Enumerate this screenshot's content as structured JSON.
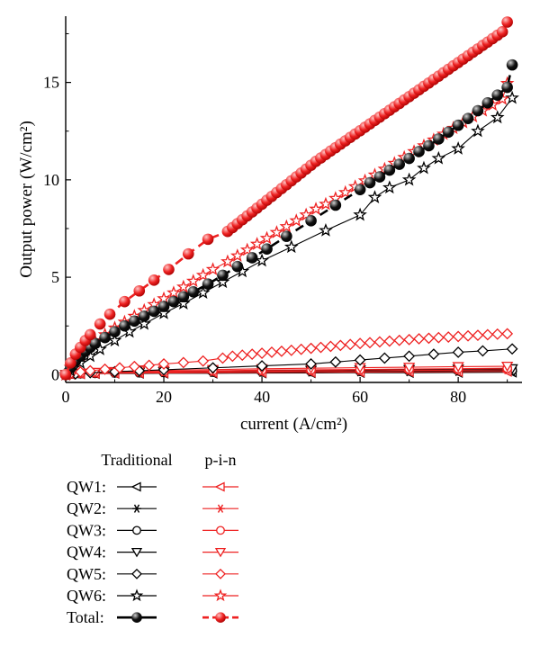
{
  "chart_data": {
    "type": "line",
    "xlabel": "current (A/cm²)",
    "ylabel": "Output power (W/cm²)",
    "xlim": [
      0,
      93
    ],
    "ylim": [
      -0.4,
      18.4
    ],
    "x_ticks": [
      0,
      20,
      40,
      60,
      80
    ],
    "y_ticks": [
      0,
      5,
      10,
      15
    ],
    "grid": false,
    "legend_position": "below",
    "legend_headers": [
      "Traditional",
      "p-i-n"
    ],
    "legend_rows": [
      "QW1:",
      "QW2:",
      "QW3:",
      "QW4:",
      "QW5:",
      "QW6:",
      "Total:"
    ],
    "colors": {
      "traditional": "#000000",
      "pin": "#ee2222"
    },
    "series": [
      {
        "legend_row": 0,
        "group": "traditional",
        "marker": "triangle-left",
        "x": [
          0,
          1,
          3,
          6,
          10,
          15,
          20,
          30,
          40,
          50,
          60,
          70,
          80,
          91
        ],
        "y": [
          0,
          0.02,
          0.04,
          0.05,
          0.06,
          0.06,
          0.07,
          0.07,
          0.08,
          0.09,
          0.1,
          0.1,
          0.11,
          0.12
        ]
      },
      {
        "legend_row": 1,
        "group": "traditional",
        "marker": "asterisk",
        "x": [
          0,
          1,
          3,
          6,
          10,
          15,
          20,
          30,
          40,
          50,
          60,
          70,
          80,
          91
        ],
        "y": [
          0,
          0.02,
          0.04,
          0.06,
          0.08,
          0.09,
          0.1,
          0.11,
          0.12,
          0.13,
          0.14,
          0.15,
          0.16,
          0.17
        ]
      },
      {
        "legend_row": 2,
        "group": "traditional",
        "marker": "circle",
        "x": [
          0,
          1,
          3,
          6,
          10,
          15,
          20,
          30,
          40,
          50,
          60,
          70,
          80,
          91
        ],
        "y": [
          0,
          0.03,
          0.05,
          0.07,
          0.09,
          0.1,
          0.11,
          0.13,
          0.14,
          0.16,
          0.17,
          0.19,
          0.2,
          0.22
        ]
      },
      {
        "legend_row": 3,
        "group": "traditional",
        "marker": "triangle-down",
        "x": [
          0,
          1,
          3,
          6,
          10,
          15,
          20,
          30,
          40,
          50,
          60,
          70,
          80,
          91
        ],
        "y": [
          0,
          0.03,
          0.06,
          0.09,
          0.11,
          0.13,
          0.15,
          0.18,
          0.2,
          0.22,
          0.24,
          0.26,
          0.28,
          0.3
        ]
      },
      {
        "legend_row": 4,
        "group": "traditional",
        "marker": "diamond",
        "x": [
          0,
          2,
          5,
          10,
          15,
          20,
          30,
          40,
          50,
          55,
          60,
          65,
          70,
          75,
          80,
          85,
          91
        ],
        "y": [
          0,
          0.04,
          0.1,
          0.15,
          0.2,
          0.25,
          0.35,
          0.45,
          0.55,
          0.65,
          0.75,
          0.85,
          0.95,
          1.05,
          1.15,
          1.22,
          1.32
        ]
      },
      {
        "legend_row": 5,
        "group": "traditional",
        "marker": "star",
        "x": [
          0,
          1,
          3,
          5,
          7,
          10,
          13,
          16,
          20,
          24,
          28,
          32,
          36,
          40,
          46,
          53,
          60,
          63,
          66,
          70,
          73,
          76,
          80,
          84,
          88,
          91
        ],
        "y": [
          0,
          0.2,
          0.6,
          0.95,
          1.3,
          1.75,
          2.2,
          2.6,
          3.15,
          3.65,
          4.2,
          4.75,
          5.3,
          5.85,
          6.55,
          7.4,
          8.2,
          9.1,
          9.6,
          10.0,
          10.6,
          11.1,
          11.6,
          12.5,
          13.2,
          14.2
        ]
      },
      {
        "legend_row": 6,
        "group": "traditional",
        "marker": "ball",
        "x": [
          0,
          1,
          2,
          3,
          4,
          5,
          6,
          8,
          10,
          12,
          14,
          16,
          18,
          20,
          22,
          24,
          26,
          29,
          32,
          35,
          38,
          41,
          45,
          50,
          55,
          60,
          62,
          64,
          66,
          68,
          70,
          72,
          74,
          76,
          78,
          80,
          82,
          84,
          86,
          88,
          90,
          91
        ],
        "y": [
          0,
          0.35,
          0.7,
          0.95,
          1.2,
          1.4,
          1.6,
          1.9,
          2.2,
          2.5,
          2.75,
          3.0,
          3.25,
          3.5,
          3.75,
          4.0,
          4.25,
          4.65,
          5.1,
          5.55,
          6.0,
          6.45,
          7.1,
          7.9,
          8.7,
          9.5,
          9.85,
          10.15,
          10.5,
          10.8,
          11.1,
          11.45,
          11.75,
          12.1,
          12.45,
          12.8,
          13.15,
          13.55,
          13.95,
          14.35,
          14.75,
          15.9
        ]
      },
      {
        "legend_row": 0,
        "group": "pin",
        "marker": "triangle-left",
        "x": [
          0,
          1,
          3,
          6,
          10,
          15,
          20,
          30,
          40,
          50,
          60,
          70,
          80,
          90
        ],
        "y": [
          0,
          0.02,
          0.04,
          0.06,
          0.07,
          0.08,
          0.09,
          0.1,
          0.11,
          0.12,
          0.13,
          0.14,
          0.15,
          0.16
        ]
      },
      {
        "legend_row": 1,
        "group": "pin",
        "marker": "asterisk",
        "x": [
          0,
          1,
          3,
          6,
          10,
          15,
          20,
          30,
          40,
          50,
          60,
          70,
          80,
          90
        ],
        "y": [
          0,
          0.03,
          0.05,
          0.08,
          0.1,
          0.12,
          0.13,
          0.15,
          0.17,
          0.19,
          0.2,
          0.22,
          0.23,
          0.25
        ]
      },
      {
        "legend_row": 2,
        "group": "pin",
        "marker": "circle",
        "x": [
          0,
          1,
          3,
          6,
          10,
          15,
          20,
          30,
          40,
          50,
          60,
          70,
          80,
          90
        ],
        "y": [
          0,
          0.04,
          0.07,
          0.1,
          0.13,
          0.15,
          0.17,
          0.2,
          0.23,
          0.25,
          0.27,
          0.29,
          0.31,
          0.33
        ]
      },
      {
        "legend_row": 3,
        "group": "pin",
        "marker": "triangle-down",
        "x": [
          0,
          1,
          3,
          6,
          10,
          15,
          20,
          30,
          40,
          50,
          60,
          70,
          80,
          90
        ],
        "y": [
          0,
          0.04,
          0.08,
          0.12,
          0.16,
          0.19,
          0.22,
          0.26,
          0.3,
          0.33,
          0.36,
          0.38,
          0.41,
          0.43
        ]
      },
      {
        "legend_row": 4,
        "group": "pin",
        "marker": "diamond",
        "x": [
          0,
          1,
          3,
          5,
          8,
          11,
          14,
          17,
          20,
          24,
          28,
          32,
          34,
          36,
          38,
          40,
          42,
          44,
          46,
          48,
          50,
          52,
          54,
          56,
          58,
          60,
          62,
          64,
          66,
          68,
          70,
          72,
          74,
          76,
          78,
          80,
          82,
          84,
          86,
          88,
          90
        ],
        "y": [
          0,
          0.06,
          0.14,
          0.2,
          0.28,
          0.35,
          0.42,
          0.48,
          0.55,
          0.62,
          0.7,
          0.85,
          0.95,
          1.0,
          1.05,
          1.1,
          1.15,
          1.2,
          1.25,
          1.3,
          1.35,
          1.4,
          1.45,
          1.5,
          1.55,
          1.6,
          1.64,
          1.68,
          1.72,
          1.76,
          1.8,
          1.84,
          1.87,
          1.9,
          1.93,
          1.96,
          1.99,
          2.02,
          2.05,
          2.08,
          2.1
        ]
      },
      {
        "legend_row": 5,
        "group": "pin",
        "marker": "star",
        "x": [
          0,
          1,
          2,
          3,
          4,
          5,
          6,
          8,
          10,
          12,
          14,
          16,
          18,
          20,
          22,
          24,
          26,
          28,
          30,
          33,
          35,
          37,
          39,
          41,
          43,
          45,
          47,
          49,
          51,
          53,
          55,
          57,
          59,
          61,
          63,
          65,
          67,
          69,
          71,
          73,
          75,
          77,
          79,
          81,
          83,
          85,
          87,
          89,
          90
        ],
        "y": [
          0,
          0.38,
          0.72,
          1.0,
          1.25,
          1.5,
          1.72,
          2.05,
          2.4,
          2.7,
          3.0,
          3.3,
          3.6,
          3.9,
          4.2,
          4.5,
          4.8,
          5.1,
          5.4,
          5.8,
          6.1,
          6.4,
          6.7,
          7.0,
          7.3,
          7.6,
          7.9,
          8.2,
          8.5,
          8.75,
          9.05,
          9.35,
          9.65,
          9.95,
          10.25,
          10.55,
          10.85,
          11.15,
          11.45,
          11.75,
          12.05,
          12.35,
          12.65,
          12.95,
          13.25,
          13.55,
          13.85,
          14.15,
          14.95
        ]
      },
      {
        "legend_row": 6,
        "group": "pin",
        "marker": "ball",
        "x": [
          0,
          1,
          2,
          3,
          4,
          5,
          7,
          9,
          12,
          15,
          18,
          21,
          25,
          29,
          33,
          34,
          35,
          36,
          37,
          38,
          39,
          40,
          41,
          42,
          43,
          44,
          45,
          46,
          47,
          48,
          49,
          50,
          51,
          52,
          53,
          54,
          55,
          56,
          57,
          58,
          59,
          60,
          61,
          62,
          63,
          64,
          65,
          66,
          67,
          68,
          69,
          70,
          71,
          72,
          73,
          74,
          75,
          76,
          77,
          78,
          79,
          80,
          81,
          82,
          83,
          84,
          85,
          86,
          87,
          88,
          89,
          90
        ],
        "y": [
          0,
          0.6,
          1.05,
          1.4,
          1.75,
          2.05,
          2.6,
          3.1,
          3.75,
          4.3,
          4.85,
          5.4,
          6.2,
          6.95,
          7.35,
          7.55,
          7.75,
          7.95,
          8.15,
          8.35,
          8.55,
          8.75,
          8.95,
          9.15,
          9.35,
          9.55,
          9.75,
          9.95,
          10.15,
          10.35,
          10.55,
          10.75,
          10.95,
          11.12,
          11.3,
          11.48,
          11.65,
          11.83,
          12.0,
          12.18,
          12.35,
          12.52,
          12.7,
          12.87,
          13.05,
          13.22,
          13.4,
          13.57,
          13.75,
          13.92,
          14.1,
          14.27,
          14.45,
          14.62,
          14.8,
          14.97,
          15.15,
          15.32,
          15.5,
          15.67,
          15.85,
          16.02,
          16.2,
          16.37,
          16.55,
          16.72,
          16.9,
          17.07,
          17.25,
          17.42,
          17.6,
          18.1
        ]
      }
    ]
  }
}
